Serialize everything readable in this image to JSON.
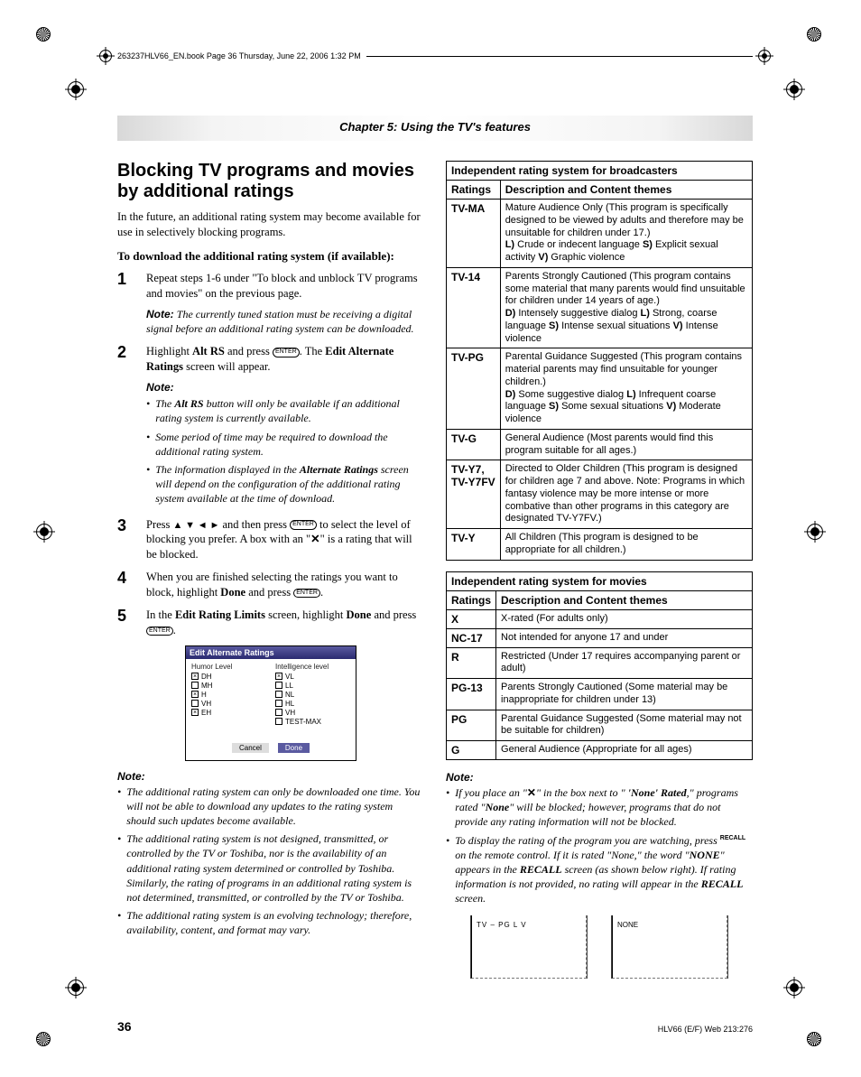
{
  "header_line": "263237HLV66_EN.book  Page 36  Thursday, June 22, 2006  1:32 PM",
  "chapter": "Chapter 5: Using the TV's features",
  "h1": "Blocking TV programs and movies by additional ratings",
  "intro": "In the future, an additional rating system may become available for use in selectively blocking programs.",
  "sub_head": "To download the additional rating system (if available):",
  "enter_label": "ENTER",
  "steps": {
    "s1": "Repeat steps 1-6 under \"To block and unblock TV programs and movies\" on the previous page.",
    "s1_note": "The currently tuned station must be receiving a digital signal before an additional rating system can be downloaded.",
    "s2a": "Highlight ",
    "s2b": "Alt RS",
    "s2c": " and press ",
    "s2d": ". The ",
    "s2e": "Edit Alternate Ratings",
    "s2f": " screen will appear.",
    "s2_bullets": [
      "The Alt RS button will only be available if an additional rating system is currently available.",
      "Some period of time may be required to download the additional rating system.",
      "The information displayed in the Alternate Ratings screen will depend on the configuration of the additional rating system available at the time of download."
    ],
    "s3a": "Press ",
    "s3b": " and then press ",
    "s3c": " to select the level of blocking you prefer. A box with an \"",
    "s3d": "\" is a rating that will be blocked.",
    "s4a": "When you are finished selecting the ratings you want to block, highlight ",
    "s4b": "Done",
    "s4c": " and press ",
    "s5a": "In the ",
    "s5b": "Edit Rating Limits",
    "s5c": " screen, highlight ",
    "s5d": "Done",
    "s5e": " and press "
  },
  "osd": {
    "title": "Edit Alternate Ratings",
    "col1_head": "Humor Level",
    "col2_head": "Intelligence level",
    "col1": [
      {
        "label": "DH",
        "checked": true
      },
      {
        "label": "MH",
        "checked": false
      },
      {
        "label": "H",
        "checked": true
      },
      {
        "label": "VH",
        "checked": false
      },
      {
        "label": "EH",
        "checked": true
      }
    ],
    "col2": [
      {
        "label": "VL",
        "checked": true
      },
      {
        "label": "LL",
        "checked": false
      },
      {
        "label": "NL",
        "checked": false
      },
      {
        "label": "HL",
        "checked": false
      },
      {
        "label": "VH",
        "checked": false
      },
      {
        "label": "TEST-MAX",
        "checked": false
      }
    ],
    "cancel": "Cancel",
    "done": "Done"
  },
  "left_notes": [
    "The additional rating system can only be downloaded one time. You will not be able to download any updates to the rating system should such updates become available.",
    "The additional rating system is not designed, transmitted, or controlled by the TV or Toshiba, nor is the availability of an additional rating system determined or controlled by Toshiba. Similarly, the rating of programs in an additional rating system is not determined, transmitted, or controlled by the TV or Toshiba.",
    "The additional rating system is an evolving technology; therefore, availability, content, and format may vary."
  ],
  "note_label": "Note:",
  "table1": {
    "title": "Independent rating system for broadcasters",
    "head_ratings": "Ratings",
    "head_desc": "Description and Content themes",
    "rows": [
      {
        "code": "TV-MA",
        "desc": "Mature Audience Only (This program is specifically designed to be viewed by adults and therefore may be unsuitable for children under 17.)\nL) Crude or indecent language  S) Explicit sexual activity V) Graphic violence"
      },
      {
        "code": "TV-14",
        "desc": "Parents Strongly Cautioned (This program contains some material that many parents would find unsuitable for children under 14 years of age.)\nD) Intensely suggestive dialog  L) Strong, coarse language S) Intense sexual situations V) Intense violence"
      },
      {
        "code": "TV-PG",
        "desc": "Parental Guidance Suggested (This program contains material parents may find unsuitable for younger children.)\nD) Some suggestive dialog  L) Infrequent coarse language S) Some sexual situations  V) Moderate violence"
      },
      {
        "code": "TV-G",
        "desc": "General Audience (Most parents would find this program suitable for all ages.)"
      },
      {
        "code": "TV-Y7, TV-Y7FV",
        "desc": "Directed to Older Children (This program is designed for children age 7 and above. Note: Programs in which fantasy violence may be more intense or more combative than other programs in this category are designated TV-Y7FV.)"
      },
      {
        "code": "TV-Y",
        "desc": "All Children (This program is designed to be appropriate for all children.)"
      }
    ]
  },
  "table2": {
    "title": "Independent rating system for movies",
    "head_ratings": "Ratings",
    "head_desc": "Description and Content themes",
    "rows": [
      {
        "code": "X",
        "desc": "X-rated (For adults only)"
      },
      {
        "code": "NC-17",
        "desc": "Not intended for anyone 17 and under"
      },
      {
        "code": "R",
        "desc": "Restricted (Under 17 requires accompanying parent or adult)"
      },
      {
        "code": "PG-13",
        "desc": "Parents Strongly Cautioned (Some material may be inappropriate for children under 13)"
      },
      {
        "code": "PG",
        "desc": "Parental Guidance Suggested (Some material may not be suitable for children)"
      },
      {
        "code": "G",
        "desc": "General Audience (Appropriate for all ages)"
      }
    ]
  },
  "right_notes": {
    "n1a": "If you place an \"",
    "n1b": "\"  in the box next to \" ",
    "n1c": "'None' Rated",
    "n1d": ",\" programs rated \"",
    "n1e": "None",
    "n1f": "\" will be blocked; however, programs that do not provide any rating information will not be blocked.",
    "n2a": "To display the rating of the program you are watching, press ",
    "n2b": " on the remote control. If it is rated \"None,\" the word \"",
    "n2c": "NONE",
    "n2d": "\" appears in the ",
    "n2e": "RECALL",
    "n2f": " screen (as shown below right). If rating information is not provided, no rating will appear in the ",
    "n2g": "RECALL",
    "n2h": " screen."
  },
  "recall_sup": "RECALL",
  "recall1": "TV – PG    L   V",
  "recall2": "NONE",
  "page_num": "36",
  "footer": "HLV66 (E/F) Web 213:276",
  "x_symbol": "✕",
  "arrows": "▲ ▼ ◄ ►"
}
